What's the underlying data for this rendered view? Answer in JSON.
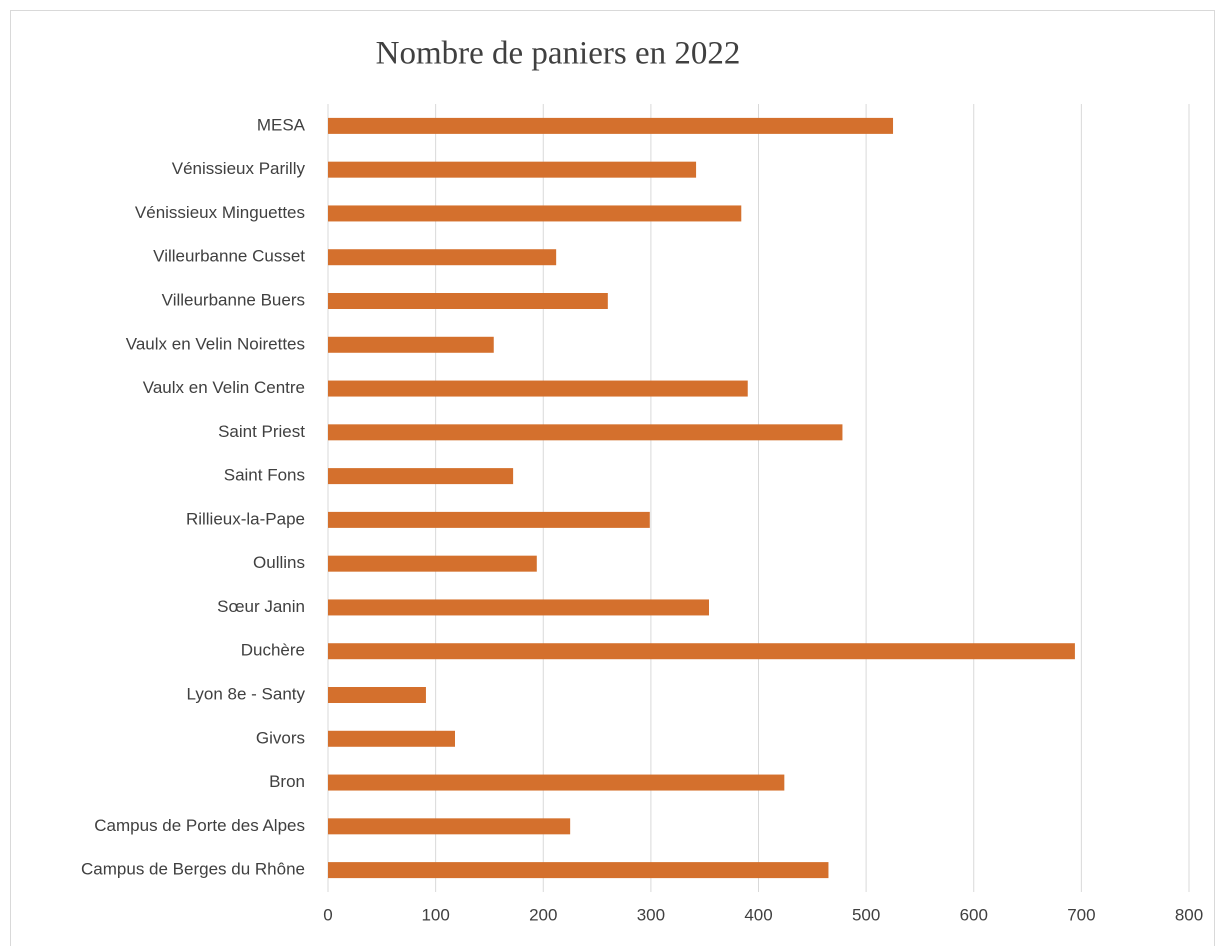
{
  "chart_data": {
    "type": "bar",
    "orientation": "horizontal",
    "title": "Nombre de paniers en 2022",
    "categories": [
      "MESA",
      "Vénissieux Parilly",
      "Vénissieux Minguettes",
      "Villeurbanne Cusset",
      "Villeurbanne Buers",
      "Vaulx en Velin Noirettes",
      "Vaulx en Velin Centre",
      "Saint Priest",
      "Saint Fons",
      "Rillieux-la-Pape",
      "Oullins",
      "Sœur Janin",
      "Duchère",
      "Lyon 8e - Santy",
      "Givors",
      "Bron",
      "Campus de Porte des Alpes",
      "Campus de Berges du Rhône"
    ],
    "values": [
      525,
      342,
      384,
      212,
      260,
      154,
      390,
      478,
      172,
      299,
      194,
      354,
      694,
      91,
      118,
      424,
      225,
      465
    ],
    "color": "#d4702d",
    "xlim": [
      0,
      800
    ],
    "xticks": [
      0,
      100,
      200,
      300,
      400,
      500,
      600,
      700,
      800
    ],
    "grid": true
  }
}
